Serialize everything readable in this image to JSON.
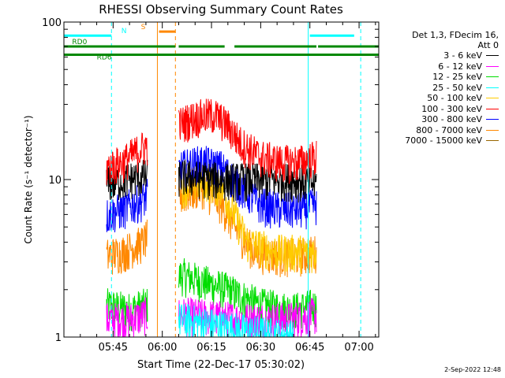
{
  "chart_data": {
    "type": "line",
    "title": "RHESSI Observing Summary Count Rates",
    "xlabel": "Start Time (22-Dec-17 05:30:02)",
    "ylabel": "Count Rate (s⁻¹ detector⁻¹)",
    "yscale": "log",
    "ylim": [
      1,
      100
    ],
    "xlim_minutes": [
      0,
      96
    ],
    "x_ticks": [
      {
        "minute": 15,
        "label": "05:45"
      },
      {
        "minute": 30,
        "label": "06:00"
      },
      {
        "minute": 45,
        "label": "06:15"
      },
      {
        "minute": 60,
        "label": "06:30"
      },
      {
        "minute": 75,
        "label": "06:45"
      },
      {
        "minute": 90,
        "label": "07:00"
      }
    ],
    "y_ticks": [
      {
        "value": 1,
        "label": "1"
      },
      {
        "value": 10,
        "label": "10"
      },
      {
        "value": 100,
        "label": "100"
      }
    ],
    "data_segments_minutes": [
      [
        13,
        25.5
      ],
      [
        35,
        77.5
      ]
    ],
    "series": [
      {
        "name": "3 - 6 keV",
        "color": "#000000",
        "values": [
          [
            13,
            9.5
          ],
          [
            18,
            10
          ],
          [
            24,
            10.5
          ],
          [
            36,
            10.5
          ],
          [
            50,
            10
          ],
          [
            60,
            10
          ],
          [
            70,
            10
          ],
          [
            77,
            9.5
          ]
        ]
      },
      {
        "name": "6 - 12 keV",
        "color": "#ff00ff",
        "values": [
          [
            13,
            1.3
          ],
          [
            20,
            1.3
          ],
          [
            25,
            1.4
          ],
          [
            36,
            1.4
          ],
          [
            55,
            1.3
          ],
          [
            68,
            1.3
          ],
          [
            77,
            1.4
          ]
        ]
      },
      {
        "name": "12 - 25 keV",
        "color": "#00dd00",
        "values": [
          [
            13,
            1.6
          ],
          [
            20,
            1.5
          ],
          [
            25,
            1.6
          ],
          [
            36,
            2.5
          ],
          [
            50,
            2.0
          ],
          [
            60,
            1.6
          ],
          [
            70,
            1.5
          ],
          [
            77,
            1.6
          ]
        ]
      },
      {
        "name": "25 - 50 keV",
        "color": "#00ffff",
        "values": [
          [
            35,
            1.3
          ],
          [
            45,
            1.2
          ],
          [
            55,
            1.1
          ],
          [
            70,
            1.0
          ]
        ]
      },
      {
        "name": "50 - 100 keV",
        "color": "#ffcc00",
        "values": [
          [
            36,
            9
          ],
          [
            42,
            10
          ],
          [
            48,
            9
          ],
          [
            52,
            6
          ],
          [
            56,
            4
          ],
          [
            65,
            3.5
          ],
          [
            77,
            3.5
          ]
        ]
      },
      {
        "name": "100 - 300 keV",
        "color": "#ff0000",
        "values": [
          [
            13,
            12
          ],
          [
            18,
            13
          ],
          [
            24,
            16
          ],
          [
            36,
            23
          ],
          [
            40,
            25
          ],
          [
            46,
            26
          ],
          [
            50,
            22
          ],
          [
            54,
            17
          ],
          [
            60,
            14
          ],
          [
            66,
            13
          ],
          [
            72,
            13
          ],
          [
            77,
            14
          ]
        ]
      },
      {
        "name": "300 - 800 keV",
        "color": "#0000ff",
        "values": [
          [
            13,
            6
          ],
          [
            18,
            6.5
          ],
          [
            24,
            7.5
          ],
          [
            36,
            12
          ],
          [
            42,
            13
          ],
          [
            48,
            12
          ],
          [
            54,
            9
          ],
          [
            60,
            7
          ],
          [
            66,
            6.5
          ],
          [
            72,
            6.5
          ],
          [
            77,
            7
          ]
        ]
      },
      {
        "name": "800 - 7000 keV",
        "color": "#ff8800",
        "values": [
          [
            13,
            3.3
          ],
          [
            18,
            3.5
          ],
          [
            24,
            4
          ],
          [
            36,
            8
          ],
          [
            42,
            9
          ],
          [
            48,
            7
          ],
          [
            52,
            5
          ],
          [
            58,
            3.5
          ],
          [
            66,
            3.3
          ],
          [
            72,
            3.3
          ],
          [
            77,
            3.5
          ]
        ]
      },
      {
        "name": "7000 - 15000 keV",
        "color": "#996600",
        "values": []
      }
    ],
    "annotations": {
      "flags": [
        {
          "label": "N",
          "color": "#00ffff",
          "level": 82,
          "segments": [
            [
              0,
              14.5
            ],
            [
              75,
              88.5
            ]
          ]
        },
        {
          "label": "S",
          "color": "#ff8800",
          "level": 87,
          "segments": [
            [
              29,
              34
            ]
          ]
        },
        {
          "label": "RD0",
          "color": "#008800",
          "level": 70,
          "segments": [
            [
              0,
              34
            ],
            [
              35,
              49
            ],
            [
              52,
              77
            ],
            [
              77.5,
              96
            ]
          ]
        },
        {
          "label": "RD6",
          "color": "#008800",
          "level": 62,
          "segments": [
            [
              0,
              96
            ]
          ]
        }
      ],
      "vertical_lines": [
        {
          "minute": 14.5,
          "color": "#00ffff",
          "style": "dashed"
        },
        {
          "minute": 28.5,
          "color": "#ff8800",
          "style": "solid"
        },
        {
          "minute": 34,
          "color": "#ff8800",
          "style": "dashed"
        },
        {
          "minute": 74.5,
          "color": "#00ffff",
          "style": "solid"
        },
        {
          "minute": 90.5,
          "color": "#00ffff",
          "style": "dashed"
        }
      ]
    },
    "grid": false
  },
  "legend": {
    "header_line1": "Det 1,3, FDecim 16,",
    "header_line2": "Att 0"
  },
  "stamp": "2-Sep-2022 12:48"
}
